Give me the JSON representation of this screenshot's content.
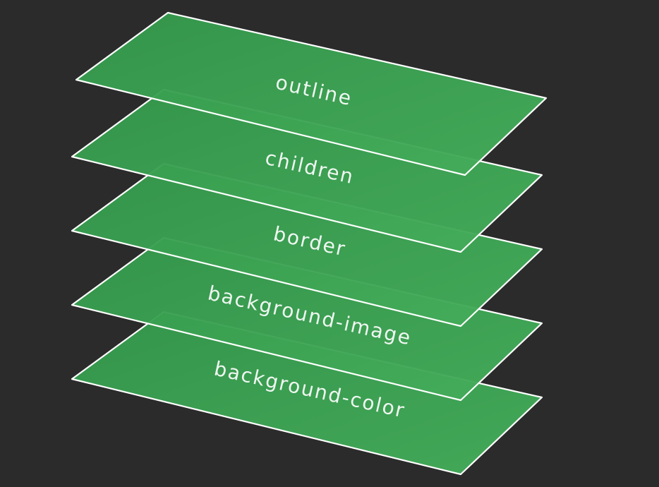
{
  "colors": {
    "background": "#2b2b2b",
    "plane_fill": "#3aa655",
    "plane_stroke": "#ffffff",
    "label_color": "#ffffff"
  },
  "layers": [
    {
      "label": "outline"
    },
    {
      "label": "children"
    },
    {
      "label": "border"
    },
    {
      "label": "background-image"
    },
    {
      "label": "background-color"
    }
  ]
}
